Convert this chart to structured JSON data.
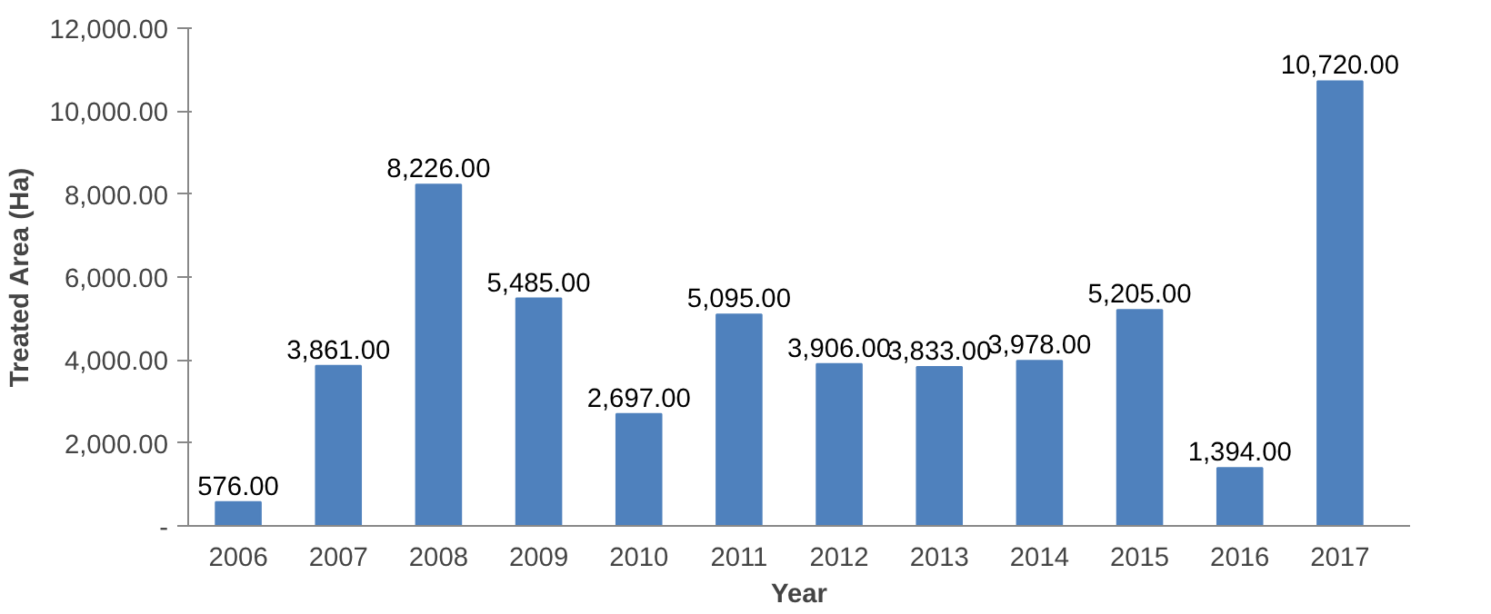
{
  "chart_data": {
    "type": "bar",
    "xlabel": "Year",
    "ylabel": "Treated Area (Ha)",
    "categories": [
      "2006",
      "2007",
      "2008",
      "2009",
      "2010",
      "2011",
      "2012",
      "2013",
      "2014",
      "2015",
      "2016",
      "2017"
    ],
    "values": [
      576,
      3861,
      8226,
      5485,
      2697,
      5095,
      3906,
      3833,
      3978,
      5205,
      1394,
      10720
    ],
    "value_labels": [
      "576.00",
      "3,861.00",
      "8,226.00",
      "5,485.00",
      "2,697.00",
      "5,095.00",
      "3,906.00",
      "3,833.00",
      "3,978.00",
      "5,205.00",
      "1,394.00",
      "10,720.00"
    ],
    "color": "#4f81bd",
    "ylim": [
      0,
      12000
    ],
    "yticks": [
      {
        "value": 0,
        "label": "-"
      },
      {
        "value": 2000,
        "label": "2,000.00"
      },
      {
        "value": 4000,
        "label": "4,000.00"
      },
      {
        "value": 6000,
        "label": "6,000.00"
      },
      {
        "value": 8000,
        "label": "8,000.00"
      },
      {
        "value": 10000,
        "label": "10,000.00"
      },
      {
        "value": 12000,
        "label": "12,000.00"
      }
    ],
    "grid": false
  }
}
